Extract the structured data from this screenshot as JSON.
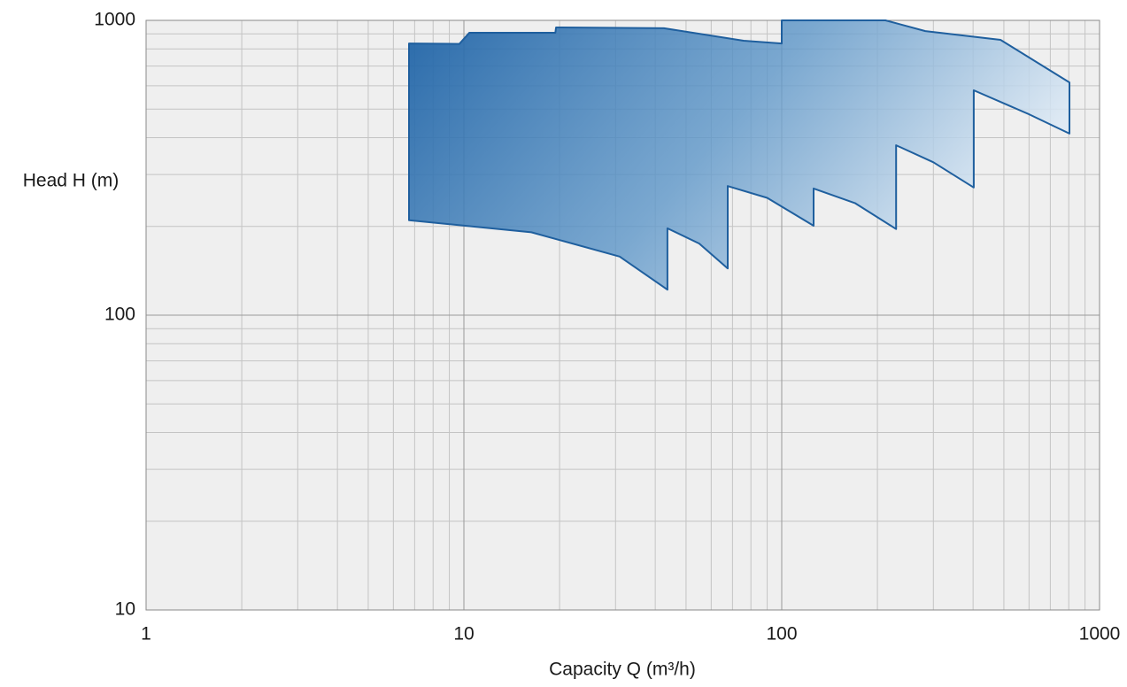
{
  "chart_data": {
    "type": "area",
    "x_label": "Capacity Q (m³/h)",
    "y_label": "Head H (m)",
    "x_log": true,
    "y_log": true,
    "grid": true,
    "minor_grid": true,
    "color": "#1f5f9e",
    "xlim": [
      1,
      1000
    ],
    "ylim": [
      10,
      1000
    ],
    "xticks": [
      1,
      10,
      100,
      1000
    ],
    "yticks": [
      10,
      100,
      1000
    ],
    "x": [
      6.72,
      9.68,
      10.4,
      19.4,
      19.5,
      42.6,
      75.9,
      100,
      100,
      212,
      283,
      488,
      804,
      804,
      600,
      402,
      402,
      300,
      229,
      229,
      170,
      126,
      126,
      90,
      67.6,
      67.6,
      55,
      43.7,
      43.7,
      30.9,
      16.3,
      6.72
    ],
    "values": [
      835,
      832,
      908,
      908,
      946,
      940,
      853,
      835,
      1000,
      1000,
      920,
      859,
      616,
      413,
      480,
      579,
      271,
      330,
      377,
      196,
      240,
      269,
      201,
      250,
      274,
      144,
      175,
      197,
      122,
      158,
      191,
      210
    ]
  }
}
